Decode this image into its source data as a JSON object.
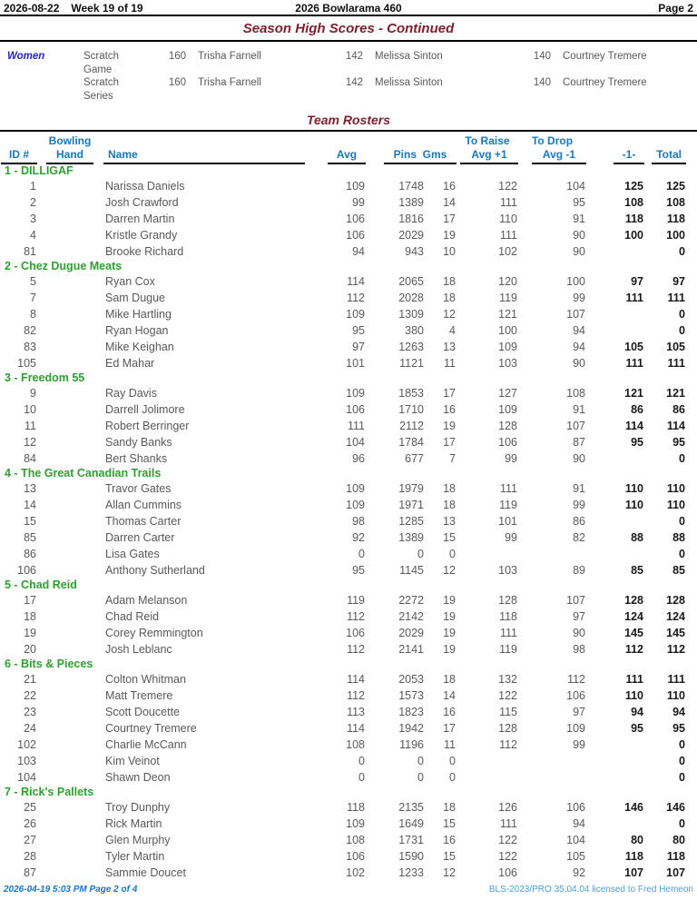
{
  "page": {
    "header": {
      "date": "2026-08-22",
      "week": "Week 19 of 19",
      "title": "2026 Bowlarama 460",
      "page_label": "Page 2"
    },
    "footer": {
      "left": "2026-04-19  5:03 PM  Page 2 of 4",
      "right": "BLS-2023/PRO 35.04.04 licensed to Fred Hemeon"
    }
  },
  "high_scores": {
    "title": "Season High Scores - Continued",
    "group": "Women",
    "rows": [
      {
        "category": "Scratch Game",
        "entries": [
          {
            "score": "160",
            "name": "Trisha Farnell"
          },
          {
            "score": "142",
            "name": "Melissa Sinton"
          },
          {
            "score": "140",
            "name": "Courtney Tremere"
          }
        ]
      },
      {
        "category": "Scratch Series",
        "entries": [
          {
            "score": "160",
            "name": "Trisha Farnell"
          },
          {
            "score": "142",
            "name": "Melissa Sinton"
          },
          {
            "score": "140",
            "name": "Courtney Tremere"
          }
        ]
      }
    ]
  },
  "rosters": {
    "title": "Team Rosters",
    "headers": {
      "id": "ID #",
      "hand_top": "Bowling",
      "hand": "Hand",
      "name": "Name",
      "avg": "Avg",
      "pins_gms": "Pins  Gms",
      "raise_top": "To Raise",
      "raise": "Avg +1",
      "drop_top": "To Drop",
      "drop": "Avg -1",
      "neg1": "-1-",
      "total": "Total"
    },
    "teams": [
      {
        "name": "1 - DILLIGAF",
        "players": [
          {
            "id": "1",
            "hand": "",
            "name": "Narissa Daniels",
            "avg": "109",
            "pins": "1748",
            "gms": "16",
            "raise": "122",
            "drop": "104",
            "neg1": "125",
            "total": "125"
          },
          {
            "id": "2",
            "hand": "",
            "name": "Josh Crawford",
            "avg": "99",
            "pins": "1389",
            "gms": "14",
            "raise": "111",
            "drop": "95",
            "neg1": "108",
            "total": "108"
          },
          {
            "id": "3",
            "hand": "",
            "name": "Darren Martin",
            "avg": "106",
            "pins": "1816",
            "gms": "17",
            "raise": "110",
            "drop": "91",
            "neg1": "118",
            "total": "118"
          },
          {
            "id": "4",
            "hand": "",
            "name": "Kristle Grandy",
            "avg": "106",
            "pins": "2029",
            "gms": "19",
            "raise": "111",
            "drop": "90",
            "neg1": "100",
            "total": "100"
          },
          {
            "id": "81",
            "hand": "",
            "name": "Brooke Richard",
            "avg": "94",
            "pins": "943",
            "gms": "10",
            "raise": "102",
            "drop": "90",
            "neg1": "",
            "total": "0"
          }
        ]
      },
      {
        "name": "2 - Chez Dugue Meats",
        "players": [
          {
            "id": "5",
            "hand": "",
            "name": "Ryan Cox",
            "avg": "114",
            "pins": "2065",
            "gms": "18",
            "raise": "120",
            "drop": "100",
            "neg1": "97",
            "total": "97"
          },
          {
            "id": "7",
            "hand": "",
            "name": "Sam Dugue",
            "avg": "112",
            "pins": "2028",
            "gms": "18",
            "raise": "119",
            "drop": "99",
            "neg1": "111",
            "total": "111"
          },
          {
            "id": "8",
            "hand": "",
            "name": "Mike Hartling",
            "avg": "109",
            "pins": "1309",
            "gms": "12",
            "raise": "121",
            "drop": "107",
            "neg1": "",
            "total": "0"
          },
          {
            "id": "82",
            "hand": "",
            "name": "Ryan Hogan",
            "avg": "95",
            "pins": "380",
            "gms": "4",
            "raise": "100",
            "drop": "94",
            "neg1": "",
            "total": "0"
          },
          {
            "id": "83",
            "hand": "",
            "name": "Mike Keighan",
            "avg": "97",
            "pins": "1263",
            "gms": "13",
            "raise": "109",
            "drop": "94",
            "neg1": "105",
            "total": "105"
          },
          {
            "id": "105",
            "hand": "",
            "name": "Ed Mahar",
            "avg": "101",
            "pins": "1121",
            "gms": "11",
            "raise": "103",
            "drop": "90",
            "neg1": "111",
            "total": "111"
          }
        ]
      },
      {
        "name": "3 - Freedom 55",
        "players": [
          {
            "id": "9",
            "hand": "",
            "name": "Ray Davis",
            "avg": "109",
            "pins": "1853",
            "gms": "17",
            "raise": "127",
            "drop": "108",
            "neg1": "121",
            "total": "121"
          },
          {
            "id": "10",
            "hand": "",
            "name": "Darrell Jolimore",
            "avg": "106",
            "pins": "1710",
            "gms": "16",
            "raise": "109",
            "drop": "91",
            "neg1": "86",
            "total": "86"
          },
          {
            "id": "11",
            "hand": "",
            "name": "Robert Berringer",
            "avg": "111",
            "pins": "2112",
            "gms": "19",
            "raise": "128",
            "drop": "107",
            "neg1": "114",
            "total": "114"
          },
          {
            "id": "12",
            "hand": "",
            "name": "Sandy Banks",
            "avg": "104",
            "pins": "1784",
            "gms": "17",
            "raise": "106",
            "drop": "87",
            "neg1": "95",
            "total": "95"
          },
          {
            "id": "84",
            "hand": "",
            "name": "Bert Shanks",
            "avg": "96",
            "pins": "677",
            "gms": "7",
            "raise": "99",
            "drop": "90",
            "neg1": "",
            "total": "0"
          }
        ]
      },
      {
        "name": "4 - The Great Canadian Trails",
        "players": [
          {
            "id": "13",
            "hand": "",
            "name": "Travor Gates",
            "avg": "109",
            "pins": "1979",
            "gms": "18",
            "raise": "111",
            "drop": "91",
            "neg1": "110",
            "total": "110"
          },
          {
            "id": "14",
            "hand": "",
            "name": "Allan Cummins",
            "avg": "109",
            "pins": "1971",
            "gms": "18",
            "raise": "119",
            "drop": "99",
            "neg1": "110",
            "total": "110"
          },
          {
            "id": "15",
            "hand": "",
            "name": "Thomas Carter",
            "avg": "98",
            "pins": "1285",
            "gms": "13",
            "raise": "101",
            "drop": "86",
            "neg1": "",
            "total": "0"
          },
          {
            "id": "85",
            "hand": "",
            "name": "Darren Carter",
            "avg": "92",
            "pins": "1389",
            "gms": "15",
            "raise": "99",
            "drop": "82",
            "neg1": "88",
            "total": "88"
          },
          {
            "id": "86",
            "hand": "",
            "name": "Lisa Gates",
            "avg": "0",
            "pins": "0",
            "gms": "0",
            "raise": "",
            "drop": "",
            "neg1": "",
            "total": "0"
          },
          {
            "id": "106",
            "hand": "",
            "name": "Anthony Sutherland",
            "avg": "95",
            "pins": "1145",
            "gms": "12",
            "raise": "103",
            "drop": "89",
            "neg1": "85",
            "total": "85"
          }
        ]
      },
      {
        "name": "5 - Chad Reid",
        "players": [
          {
            "id": "17",
            "hand": "",
            "name": "Adam Melanson",
            "avg": "119",
            "pins": "2272",
            "gms": "19",
            "raise": "128",
            "drop": "107",
            "neg1": "128",
            "total": "128"
          },
          {
            "id": "18",
            "hand": "",
            "name": "Chad Reid",
            "avg": "112",
            "pins": "2142",
            "gms": "19",
            "raise": "118",
            "drop": "97",
            "neg1": "124",
            "total": "124"
          },
          {
            "id": "19",
            "hand": "",
            "name": "Corey Remmington",
            "avg": "106",
            "pins": "2029",
            "gms": "19",
            "raise": "111",
            "drop": "90",
            "neg1": "145",
            "total": "145"
          },
          {
            "id": "20",
            "hand": "",
            "name": "Josh Leblanc",
            "avg": "112",
            "pins": "2141",
            "gms": "19",
            "raise": "119",
            "drop": "98",
            "neg1": "112",
            "total": "112"
          }
        ]
      },
      {
        "name": "6 - Bits & Pieces",
        "players": [
          {
            "id": "21",
            "hand": "",
            "name": "Colton Whitman",
            "avg": "114",
            "pins": "2053",
            "gms": "18",
            "raise": "132",
            "drop": "112",
            "neg1": "111",
            "total": "111"
          },
          {
            "id": "22",
            "hand": "",
            "name": "Matt Tremere",
            "avg": "112",
            "pins": "1573",
            "gms": "14",
            "raise": "122",
            "drop": "106",
            "neg1": "110",
            "total": "110"
          },
          {
            "id": "23",
            "hand": "",
            "name": "Scott Doucette",
            "avg": "113",
            "pins": "1823",
            "gms": "16",
            "raise": "115",
            "drop": "97",
            "neg1": "94",
            "total": "94"
          },
          {
            "id": "24",
            "hand": "",
            "name": "Courtney Tremere",
            "avg": "114",
            "pins": "1942",
            "gms": "17",
            "raise": "128",
            "drop": "109",
            "neg1": "95",
            "total": "95"
          },
          {
            "id": "102",
            "hand": "",
            "name": "Charlie McCann",
            "avg": "108",
            "pins": "1196",
            "gms": "11",
            "raise": "112",
            "drop": "99",
            "neg1": "",
            "total": "0"
          },
          {
            "id": "103",
            "hand": "",
            "name": "Kim Veinot",
            "avg": "0",
            "pins": "0",
            "gms": "0",
            "raise": "",
            "drop": "",
            "neg1": "",
            "total": "0"
          },
          {
            "id": "104",
            "hand": "",
            "name": "Shawn Deon",
            "avg": "0",
            "pins": "0",
            "gms": "0",
            "raise": "",
            "drop": "",
            "neg1": "",
            "total": "0"
          }
        ]
      },
      {
        "name": "7 - Rick's Pallets",
        "players": [
          {
            "id": "25",
            "hand": "",
            "name": "Troy Dunphy",
            "avg": "118",
            "pins": "2135",
            "gms": "18",
            "raise": "126",
            "drop": "106",
            "neg1": "146",
            "total": "146"
          },
          {
            "id": "26",
            "hand": "",
            "name": "Rick Martin",
            "avg": "109",
            "pins": "1649",
            "gms": "15",
            "raise": "111",
            "drop": "94",
            "neg1": "",
            "total": "0"
          },
          {
            "id": "27",
            "hand": "",
            "name": "Glen Murphy",
            "avg": "108",
            "pins": "1731",
            "gms": "16",
            "raise": "122",
            "drop": "104",
            "neg1": "80",
            "total": "80"
          },
          {
            "id": "28",
            "hand": "",
            "name": "Tyler Martin",
            "avg": "106",
            "pins": "1590",
            "gms": "15",
            "raise": "122",
            "drop": "105",
            "neg1": "118",
            "total": "118"
          },
          {
            "id": "87",
            "hand": "",
            "name": "Sammie Doucet",
            "avg": "102",
            "pins": "1233",
            "gms": "12",
            "raise": "106",
            "drop": "92",
            "neg1": "107",
            "total": "107"
          }
        ]
      }
    ]
  },
  "colors": {
    "title_maroon": "#7d1f2e",
    "header_blue": "#1878ba",
    "team_green": "#2fa02f",
    "body_gray": "#58595b",
    "emph_black": "#1a1a1a",
    "group_blue": "#2626bd",
    "footer_blue": "#1877c8",
    "footer_light_blue": "#4ba1d8"
  }
}
